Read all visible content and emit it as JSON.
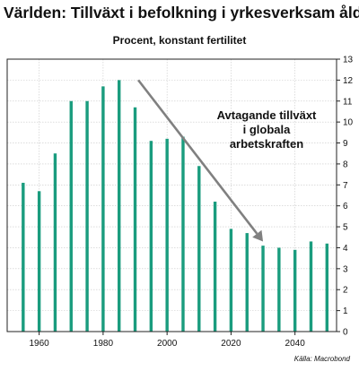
{
  "chart_data": {
    "type": "bar",
    "title": "Världen: Tillväxt i befolkning i yrkesverksam ålder",
    "subtitle": "Procent, konstant fertilitet",
    "x": [
      1955,
      1960,
      1965,
      1970,
      1975,
      1980,
      1985,
      1990,
      1995,
      2000,
      2005,
      2010,
      2015,
      2020,
      2025,
      2030,
      2035,
      2040,
      2045,
      2050
    ],
    "values": [
      7.1,
      6.7,
      8.5,
      11.0,
      11.0,
      11.7,
      12.0,
      10.7,
      9.1,
      9.2,
      9.3,
      7.9,
      6.2,
      4.9,
      4.7,
      4.1,
      4.0,
      3.9,
      4.3,
      4.2
    ],
    "xticks": [
      1960,
      1980,
      2000,
      2020,
      2040
    ],
    "xlim": [
      1950,
      2053
    ],
    "ylim": [
      0,
      13
    ],
    "yticks": [
      0,
      1,
      2,
      3,
      4,
      5,
      6,
      7,
      8,
      9,
      10,
      11,
      12,
      13
    ],
    "yaxis_position": "right",
    "grid": true,
    "bar_color": "#1a9c7e",
    "arrow_color": "#808080",
    "annotation": {
      "lines": [
        "Avtagande tillväxt",
        "i globala",
        "arbetskraften"
      ],
      "arrow_from": [
        1991,
        12.0
      ],
      "arrow_to": [
        2030,
        4.3
      ]
    }
  },
  "source": "Källa: Macrobond"
}
